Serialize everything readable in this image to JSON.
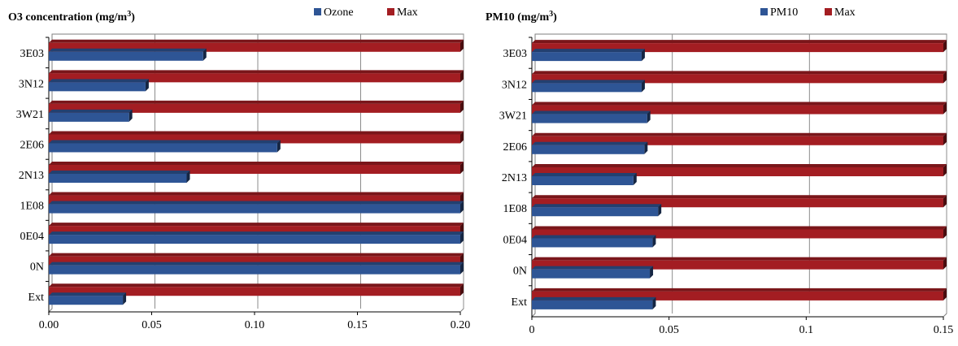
{
  "chart_data": [
    {
      "type": "bar",
      "orientation": "horizontal",
      "title": "O3 concentration (mg/m",
      "title_sup": "3",
      "title_end": ")",
      "categories": [
        "Ext",
        "0N",
        "0E04",
        "1E08",
        "2N13",
        "2E06",
        "3W21",
        "3N12",
        "3E03"
      ],
      "series": [
        {
          "name": "Ozone",
          "color": "#2e5595",
          "values": [
            0.036,
            0.2,
            0.2,
            0.2,
            0.067,
            0.111,
            0.039,
            0.047,
            0.075
          ]
        },
        {
          "name": "Max",
          "color": "#a31d22",
          "values": [
            0.2,
            0.2,
            0.2,
            0.2,
            0.2,
            0.2,
            0.2,
            0.2,
            0.2
          ]
        }
      ],
      "xlim": [
        0,
        0.2
      ],
      "xticks": [
        "0.00",
        "0.05",
        "0.10",
        "0.15",
        "0.20"
      ],
      "grid": true,
      "legend": "top"
    },
    {
      "type": "bar",
      "orientation": "horizontal",
      "title": "PM10 (mg/m",
      "title_sup": "3",
      "title_end": ")",
      "categories": [
        "Ext",
        "0N",
        "0E04",
        "1E08",
        "2N13",
        "2E06",
        "3W21",
        "3N12",
        "3E03"
      ],
      "series": [
        {
          "name": "PM10",
          "color": "#2e5595",
          "values": [
            0.044,
            0.043,
            0.044,
            0.046,
            0.037,
            0.041,
            0.042,
            0.04,
            0.04
          ]
        },
        {
          "name": "Max",
          "color": "#a31d22",
          "values": [
            0.15,
            0.15,
            0.15,
            0.15,
            0.15,
            0.15,
            0.15,
            0.15,
            0.15
          ]
        }
      ],
      "xlim": [
        0,
        0.15
      ],
      "xticks": [
        "0",
        "0.05",
        "0.1",
        "0.15"
      ],
      "grid": true,
      "legend": "top"
    }
  ]
}
